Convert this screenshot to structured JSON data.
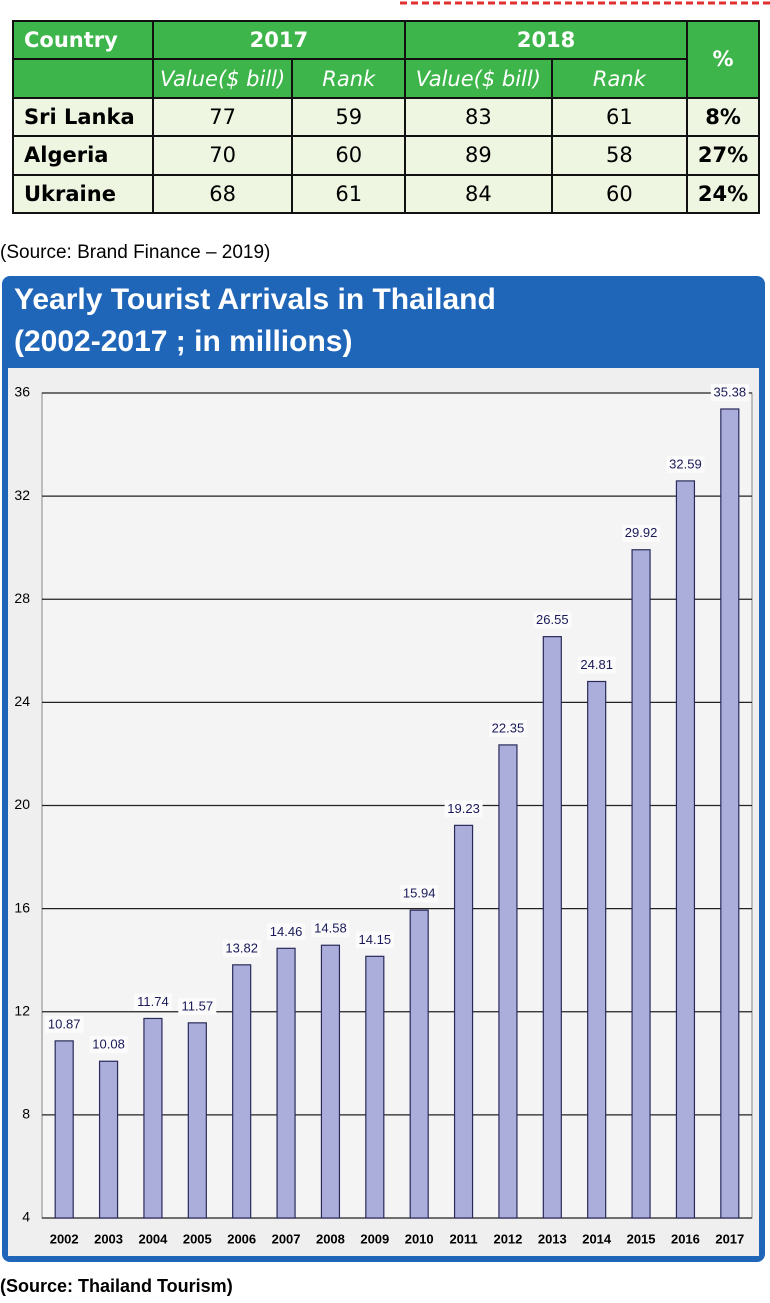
{
  "table": {
    "columns": [
      "Country",
      "2017",
      "2018",
      "%"
    ],
    "subcolumns": [
      "Value($ bill)",
      "Rank",
      "Value($ bill)",
      "Rank"
    ],
    "rows": [
      [
        "Sri Lanka",
        77,
        59,
        83,
        61,
        "8%"
      ],
      [
        "Algeria",
        70,
        60,
        89,
        58,
        "27%"
      ],
      [
        "Ukraine",
        68,
        61,
        84,
        60,
        "24%"
      ]
    ]
  },
  "table_source": "(Source: Brand Finance – 2019)",
  "chart_data": {
    "type": "bar",
    "title": "Yearly Tourist Arrivals in Thailand",
    "subtitle": "(2002-2017 ; in millions)",
    "categories": [
      "2002",
      "2003",
      "2004",
      "2005",
      "2006",
      "2007",
      "2008",
      "2009",
      "2010",
      "2011",
      "2012",
      "2013",
      "2014",
      "2015",
      "2016",
      "2017"
    ],
    "values": [
      10.87,
      10.08,
      11.74,
      11.57,
      13.82,
      14.46,
      14.58,
      14.15,
      15.94,
      19.23,
      22.35,
      26.55,
      24.81,
      29.92,
      32.59,
      35.38
    ],
    "color": "#abaedb",
    "ylim": [
      4,
      36
    ],
    "yticks": [
      4,
      8,
      12,
      16,
      20,
      24,
      28,
      32,
      36
    ],
    "grid": true
  },
  "chart_source": "(Source: Thailand Tourism)"
}
